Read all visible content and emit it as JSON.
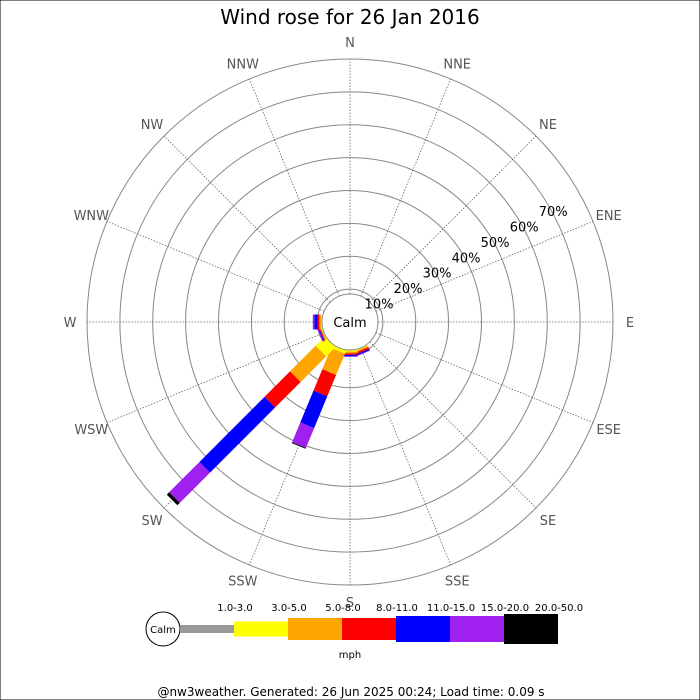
{
  "chart_data": {
    "type": "wind-rose",
    "title": "Wind rose for 26 Jan 2016",
    "directions": [
      "N",
      "NNE",
      "NE",
      "ENE",
      "E",
      "ESE",
      "SE",
      "SSE",
      "S",
      "SSW",
      "SW",
      "WSW",
      "W",
      "WNW",
      "NW",
      "NNW"
    ],
    "radial_labels": [
      "10%",
      "20%",
      "30%",
      "40%",
      "50%",
      "60%",
      "70%"
    ],
    "radial_max_percent": 80,
    "calm_label": "Calm",
    "legend": {
      "calm_label": "Calm",
      "unit_label": "mph",
      "bins": [
        {
          "label": "1.0-3.0",
          "color": "#999999"
        },
        {
          "label": "3.0-5.0",
          "color": "#ffff00"
        },
        {
          "label": "5.0-8.0",
          "color": "#ffa500"
        },
        {
          "label": "8.0-11.0",
          "color": "#ff0000"
        },
        {
          "label": "11.0-15.0",
          "color": "#0000ff"
        },
        {
          "label": "15.0-20.0",
          "color": "#a020f0"
        },
        {
          "label": "20.0-50.0",
          "color": "#000000"
        }
      ]
    },
    "series": [
      {
        "direction": "SSE",
        "values": [
          0,
          0.3,
          0.4,
          0.6,
          0.4,
          0.2,
          0
        ]
      },
      {
        "direction": "S",
        "values": [
          0,
          0.5,
          0.5,
          0.5,
          0.4,
          0.2,
          0
        ]
      },
      {
        "direction": "SSW",
        "values": [
          0,
          1.0,
          7.0,
          7.0,
          10.5,
          6.5,
          0.3
        ]
      },
      {
        "direction": "SW",
        "values": [
          0,
          4.0,
          11.0,
          11.0,
          28.0,
          13.0,
          1.0
        ]
      },
      {
        "direction": "WSW",
        "values": [
          0,
          0.3,
          0.3,
          0.3,
          0.3,
          0.3,
          0
        ]
      },
      {
        "direction": "W",
        "values": [
          0,
          0.3,
          0.5,
          0.5,
          1.0,
          0.5,
          0
        ]
      }
    ]
  },
  "footer": "@nw3weather. Generated: 26 Jun 2025 00:24; Load time: 0.09 s"
}
